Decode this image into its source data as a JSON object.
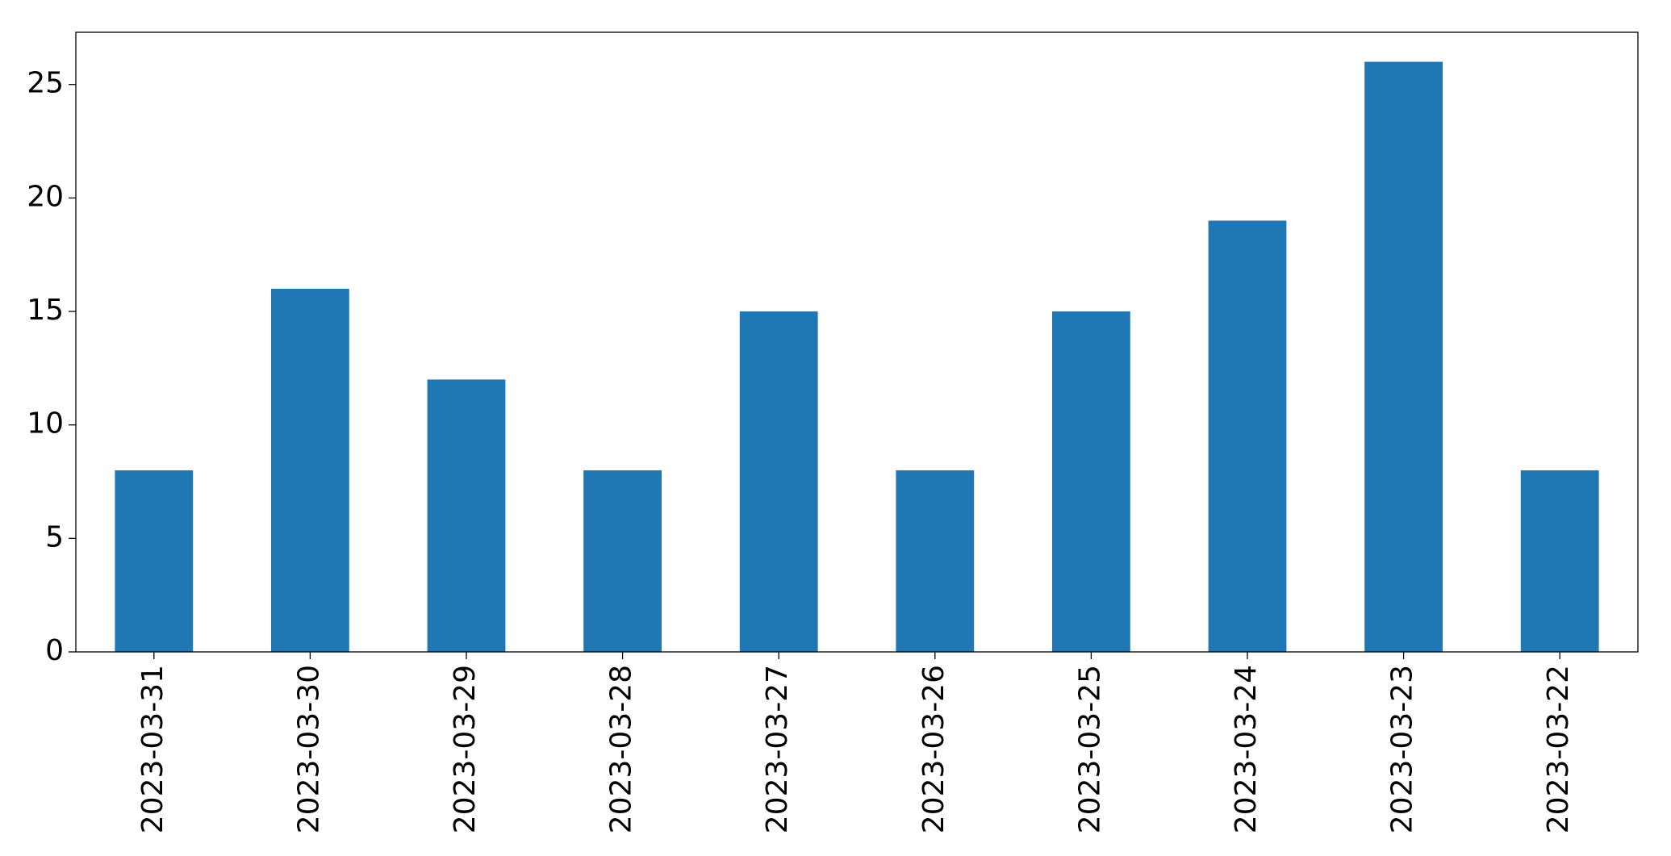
{
  "chart_data": {
    "type": "bar",
    "categories": [
      "2023-03-31",
      "2023-03-30",
      "2023-03-29",
      "2023-03-28",
      "2023-03-27",
      "2023-03-26",
      "2023-03-25",
      "2023-03-24",
      "2023-03-23",
      "2023-03-22"
    ],
    "values": [
      8,
      16,
      12,
      8,
      15,
      8,
      15,
      19,
      26,
      8
    ],
    "color": "#1f77b4",
    "ylim": [
      0,
      27.3
    ],
    "yticks": [
      0,
      5,
      10,
      15,
      20,
      25
    ],
    "grid": false
  }
}
